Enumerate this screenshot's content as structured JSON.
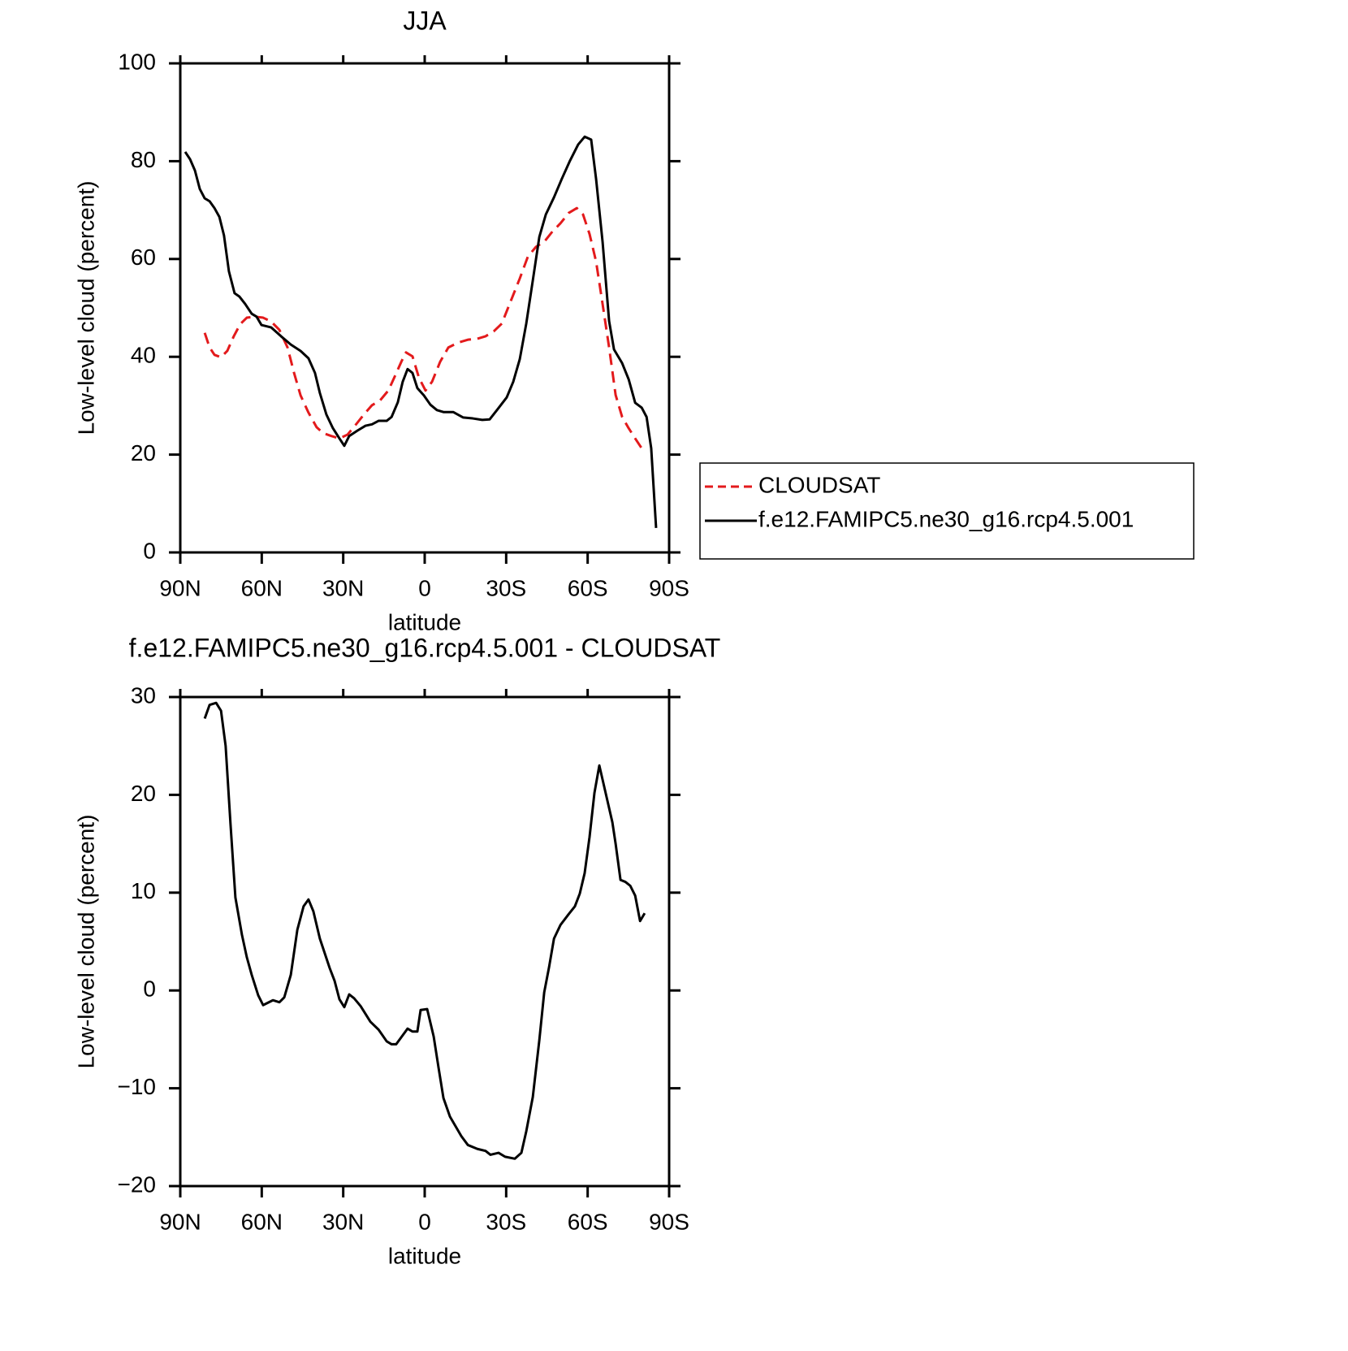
{
  "chart_data": [
    {
      "type": "line",
      "title": "JJA",
      "xlabel": "latitude",
      "ylabel": "Low-level cloud (percent)",
      "xlim": [
        90,
        -90
      ],
      "xticks": [
        {
          "value": 90,
          "label": "90N"
        },
        {
          "value": 60,
          "label": "60N"
        },
        {
          "value": 30,
          "label": "30N"
        },
        0,
        {
          "value": -30,
          "label": "30S"
        },
        {
          "value": -60,
          "label": "60S"
        },
        {
          "value": -90,
          "label": "90S"
        }
      ],
      "ylim": [
        0,
        100
      ],
      "yticks": [
        0,
        20,
        40,
        60,
        80,
        100
      ],
      "legend": "outside right",
      "series": [
        {
          "name": "CLOUDSAT",
          "color": "#e31a1c",
          "dash": true,
          "x": [
            81,
            79.2,
            77.4,
            75,
            72.7,
            70.3,
            67.9,
            65.5,
            62.5,
            59.5,
            56.5,
            53.5,
            50.5,
            48.1,
            45.7,
            42.8,
            39.8,
            37.4,
            34.4,
            31.4,
            28.4,
            25.4,
            22.4,
            19.4,
            16.4,
            13.4,
            11,
            8.6,
            6.9,
            4.5,
            2.1,
            -0.3,
            -2.7,
            -5.7,
            -8.7,
            -12.3,
            -15.9,
            -19.4,
            -22.4,
            -25.4,
            -28.4,
            -31.4,
            -35,
            -38,
            -41,
            -44,
            -47,
            -50,
            -53,
            -56,
            -58.3,
            -60.7,
            -63.1,
            -65.5,
            -67.9,
            -70.3,
            -72.7,
            -75.1,
            -77.5,
            -79.9
          ],
          "values": [
            44.9,
            41.9,
            40.4,
            39.9,
            41.2,
            44.2,
            46.7,
            48.0,
            48.2,
            48.0,
            47.2,
            45.5,
            41.9,
            36.7,
            32.1,
            28.6,
            25.6,
            24.4,
            23.8,
            23.3,
            24.1,
            26.1,
            28.2,
            30.1,
            31.1,
            33.1,
            36.0,
            39.0,
            40.9,
            40.1,
            35.7,
            33.1,
            34.9,
            39.0,
            41.9,
            42.9,
            43.5,
            43.7,
            44.2,
            45.2,
            46.8,
            51.0,
            56.0,
            60.5,
            62.5,
            63.5,
            65.6,
            67.3,
            69.4,
            70.4,
            69.1,
            65.1,
            59.5,
            50.8,
            41.9,
            32.2,
            27.7,
            25.4,
            23.3,
            21.3
          ]
        },
        {
          "name": "f.e12.FAMIPC5.ne30_g16.rcp4.5.001",
          "color": "#000000",
          "dash": false,
          "x": [
            88.2,
            86.4,
            84.6,
            82.8,
            81,
            79.2,
            77.4,
            75.6,
            73.9,
            72.1,
            70,
            68.2,
            66.1,
            63.7,
            61.9,
            60.1,
            56.5,
            52.9,
            49.3,
            45.7,
            42.8,
            40.4,
            38.6,
            36.2,
            33.8,
            31.4,
            29.6,
            27.8,
            24.8,
            21.8,
            19.4,
            17,
            14,
            12.2,
            9.9,
            8.1,
            6.3,
            4.5,
            2.7,
            0.3,
            -2.1,
            -4.5,
            -6.9,
            -10.5,
            -14.1,
            -17.7,
            -21.2,
            -23.9,
            -26.6,
            -30.2,
            -32.6,
            -35,
            -37.4,
            -39.8,
            -42.2,
            -44.6,
            -47.6,
            -50.5,
            -53.5,
            -56.5,
            -58.9,
            -61.3,
            -63.1,
            -65.5,
            -67.9,
            -69.7,
            -72.7,
            -75.1,
            -77.5,
            -79.9,
            -81.7,
            -83.4,
            -85.2
          ],
          "values": [
            81.9,
            80.4,
            78.1,
            74.3,
            72.4,
            71.8,
            70.4,
            68.6,
            64.8,
            57.5,
            53.0,
            52.3,
            50.8,
            48.8,
            48.2,
            46.5,
            46.0,
            44.2,
            42.5,
            41.2,
            39.7,
            36.7,
            32.6,
            28.2,
            25.4,
            23.3,
            21.8,
            23.8,
            24.9,
            25.9,
            26.2,
            26.9,
            26.9,
            27.7,
            30.7,
            34.9,
            37.5,
            36.7,
            33.6,
            32.1,
            30.2,
            29.1,
            28.7,
            28.7,
            27.6,
            27.4,
            27.1,
            27.2,
            29.1,
            31.7,
            34.9,
            39.5,
            46.8,
            55.6,
            64.5,
            69.1,
            72.6,
            76.4,
            80.1,
            83.4,
            85.0,
            84.4,
            76.4,
            63.5,
            47.3,
            41.5,
            38.7,
            35.4,
            30.6,
            29.6,
            27.7,
            21.3,
            5.0
          ]
        }
      ]
    },
    {
      "type": "line",
      "title": "f.e12.FAMIPC5.ne30_g16.rcp4.5.001 - CLOUDSAT",
      "xlabel": "latitude",
      "ylabel": "Low-level cloud (percent)",
      "xlim": [
        90,
        -90
      ],
      "xticks": [
        {
          "value": 90,
          "label": "90N"
        },
        {
          "value": 60,
          "label": "60N"
        },
        {
          "value": 30,
          "label": "30N"
        },
        0,
        {
          "value": -30,
          "label": "30S"
        },
        {
          "value": -60,
          "label": "60S"
        },
        {
          "value": -90,
          "label": "90S"
        }
      ],
      "ylim": [
        -20,
        30
      ],
      "yticks": [
        {
          "value": -20,
          "label": "−20"
        },
        {
          "value": -10,
          "label": "−10"
        },
        0,
        10,
        20,
        30
      ],
      "series": [
        {
          "color": "#000000",
          "dash": false,
          "x": [
            81,
            79.2,
            76.8,
            75,
            73.3,
            71.5,
            69.7,
            67.3,
            65.5,
            63.7,
            61.3,
            59.5,
            55.9,
            53.5,
            51.7,
            49.3,
            46.9,
            44.6,
            42.8,
            41,
            38.6,
            35,
            33.2,
            31.4,
            29.6,
            27.8,
            26,
            23.6,
            20,
            17,
            14,
            12.2,
            10.5,
            6.3,
            4.5,
            2.7,
            1.5,
            -0.9,
            -3.3,
            -5.1,
            -6.9,
            -9.3,
            -13.5,
            -15.9,
            -19.4,
            -22.4,
            -24.2,
            -27.2,
            -29.6,
            -33.2,
            -35.6,
            -37.4,
            -39.8,
            -42.2,
            -44,
            -45.8,
            -47.6,
            -50,
            -53,
            -55.3,
            -57.1,
            -58.9,
            -60.7,
            -62.5,
            -64.3,
            -66.7,
            -69.1,
            -70.3,
            -72.1,
            -73.9,
            -75.7,
            -77.5,
            -79.3,
            -81
          ],
          "values": [
            27.8,
            29.2,
            29.4,
            28.6,
            25.0,
            17.0,
            9.5,
            5.7,
            3.4,
            1.6,
            -0.5,
            -1.5,
            -1.0,
            -1.2,
            -0.7,
            1.6,
            6.2,
            8.6,
            9.3,
            8.1,
            5.3,
            2.3,
            1.0,
            -0.9,
            -1.7,
            -0.4,
            -0.8,
            -1.6,
            -3.2,
            -4.0,
            -5.2,
            -5.5,
            -5.5,
            -3.9,
            -4.2,
            -4.2,
            -2.0,
            -1.9,
            -4.7,
            -7.9,
            -11.0,
            -12.9,
            -14.9,
            -15.8,
            -16.2,
            -16.4,
            -16.8,
            -16.6,
            -17.0,
            -17.2,
            -16.6,
            -14.4,
            -10.9,
            -5.1,
            -0.2,
            2.4,
            5.3,
            6.7,
            7.8,
            8.6,
            9.9,
            12.0,
            15.7,
            20.2,
            23.0,
            20.1,
            17.2,
            15.0,
            11.3,
            11.1,
            10.7,
            9.7,
            7.1,
            7.9
          ]
        }
      ]
    }
  ]
}
